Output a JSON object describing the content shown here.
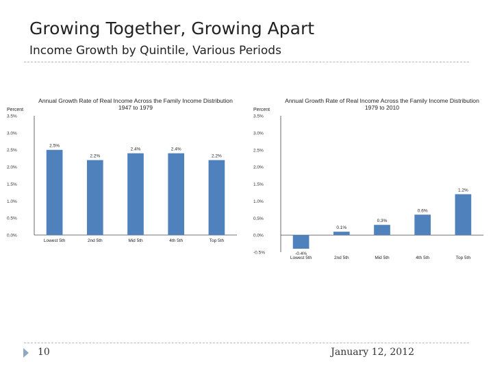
{
  "slide": {
    "title": "Growing Together, Growing Apart",
    "subtitle": "Income Growth by Quintile, Various Periods",
    "page_number": "10",
    "date": "January 12, 2012",
    "colors": {
      "bar": "#4f81bd",
      "axis": "#444444",
      "divider": "#b8b8b8",
      "arrow": "#8fa8bf"
    }
  },
  "chart_data": [
    {
      "type": "bar",
      "title": "Annual Growth Rate of Real Income Across the Family Income Distribution",
      "subtitle": "1947 to 1979",
      "ylabel": "Percent",
      "categories": [
        "Lowest 5th",
        "2nd 5th",
        "Mid 5th",
        "4th 5th",
        "Top 5th"
      ],
      "values": [
        2.5,
        2.2,
        2.4,
        2.4,
        2.2
      ],
      "data_labels": [
        "2.5%",
        "2.2%",
        "2.4%",
        "2.4%",
        "2.2%"
      ],
      "ylim": [
        0,
        3.5
      ],
      "yticks": [
        0,
        0.5,
        1.0,
        1.5,
        2.0,
        2.5,
        3.0,
        3.5
      ],
      "ytick_labels": [
        "0.0%",
        "0.5%",
        "1.0%",
        "1.5%",
        "2.0%",
        "2.5%",
        "3.0%",
        "3.5%"
      ],
      "grid": false
    },
    {
      "type": "bar",
      "title": "Annual Growth Rate of Real Income Across the Family Income Distribution",
      "subtitle": "1979 to 2010",
      "ylabel": "Percent",
      "categories": [
        "Lowest 5th",
        "2nd 5th",
        "Mid 5th",
        "4th 5th",
        "Top 5th"
      ],
      "values": [
        -0.4,
        0.1,
        0.3,
        0.6,
        1.2
      ],
      "data_labels": [
        "-0.4%",
        "0.1%",
        "0.3%",
        "0.6%",
        "1.2%"
      ],
      "ylim": [
        -0.5,
        3.5
      ],
      "yticks": [
        -0.5,
        0,
        0.5,
        1.0,
        1.5,
        2.0,
        2.5,
        3.0,
        3.5
      ],
      "ytick_labels": [
        "-0.5%",
        "0.0%",
        "0.5%",
        "1.0%",
        "1.5%",
        "2.0%",
        "2.5%",
        "3.0%",
        "3.5%"
      ],
      "grid": false
    }
  ]
}
